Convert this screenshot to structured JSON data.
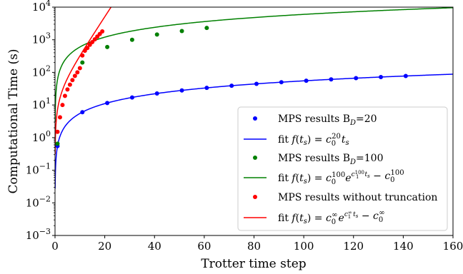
{
  "chart_data": {
    "type": "scatter",
    "title": "",
    "xlabel": "Trotter time step",
    "ylabel": "Computational Time (s)",
    "xlim": [
      0,
      160
    ],
    "ylim": [
      0.001,
      10000
    ],
    "yscale": "log",
    "grid": false,
    "legend_position": "lower-right",
    "x_ticks": [
      0,
      20,
      40,
      60,
      80,
      100,
      120,
      140,
      160
    ],
    "x_tick_labels": [
      "0",
      "20",
      "40",
      "60",
      "80",
      "100",
      "120",
      "140",
      "160"
    ],
    "y_ticks": [
      0.001,
      0.01,
      0.1,
      1,
      10,
      100,
      1000,
      10000
    ],
    "y_tick_labels": [
      {
        "base": "10",
        "exp": "−3"
      },
      {
        "base": "10",
        "exp": "−2"
      },
      {
        "base": "10",
        "exp": "−1"
      },
      {
        "base": "10",
        "exp": "0"
      },
      {
        "base": "10",
        "exp": "1"
      },
      {
        "base": "10",
        "exp": "2"
      },
      {
        "base": "10",
        "exp": "3"
      },
      {
        "base": "10",
        "exp": "4"
      }
    ],
    "series": [
      {
        "name": "MPS results B_D=20",
        "kind": "markers",
        "color": "#0000ff",
        "x": [
          1,
          11,
          21,
          31,
          41,
          51,
          61,
          71,
          81,
          91,
          101,
          111,
          121,
          131,
          141
        ],
        "y": [
          0.55,
          6.0,
          11.5,
          17.0,
          22.5,
          28.0,
          33.5,
          39.0,
          44.5,
          50.0,
          55.5,
          61.0,
          66.5,
          72.0,
          77.5
        ]
      },
      {
        "name": "fit f(t_s) = c_0^20 t_s",
        "kind": "line",
        "color": "#0000ff",
        "fit": {
          "form": "linear",
          "c0": 0.55
        }
      },
      {
        "name": "MPS results B_D=100",
        "kind": "markers",
        "color": "#008000",
        "x": [
          1,
          11,
          21,
          31,
          41,
          51,
          61
        ],
        "y": [
          0.65,
          200,
          600,
          1000,
          1450,
          1850,
          2300
        ]
      },
      {
        "name": "fit f(t_s) = c_0^100 e^(c_1^100 t_s) − c_0^100",
        "kind": "line",
        "color": "#008000",
        "fit": {
          "form": "power",
          "a": 60,
          "b": 1.0
        }
      },
      {
        "name": "MPS results without truncation",
        "kind": "markers",
        "color": "#ff0000",
        "x": [
          1,
          2,
          3,
          4,
          5,
          6,
          7,
          8,
          9,
          10,
          11,
          12,
          13,
          14,
          15,
          16,
          17,
          18,
          19
        ],
        "y": [
          1.5,
          4.2,
          10,
          19,
          30,
          42,
          58,
          78,
          100,
          135,
          330,
          460,
          560,
          700,
          850,
          1030,
          1250,
          1500,
          1800
        ]
      },
      {
        "name": "fit f(t_s) = c_0^∞ e^(c_1^∞ t_s) − c_0^∞",
        "kind": "line",
        "color": "#ff0000",
        "fit": {
          "form": "exponential",
          "c0": 23,
          "c1": 0.27
        }
      }
    ],
    "legend": {
      "items": [
        {
          "kind": "marker",
          "color": "#0000ff",
          "pre": "MPS results B",
          "sub": "D",
          "post": "=20"
        },
        {
          "kind": "line",
          "color": "#0000ff",
          "pre": "fit ",
          "math": "f(t_s) = c_0^20 t_s"
        },
        {
          "kind": "marker",
          "color": "#008000",
          "pre": "MPS results B",
          "sub": "D",
          "post": "=100"
        },
        {
          "kind": "line",
          "color": "#008000",
          "pre": "fit ",
          "math": "f(t_s) = c_0^100 e^(c_1^100 t_s) − c_0^100"
        },
        {
          "kind": "marker",
          "color": "#ff0000",
          "pre": "MPS results without truncation",
          "sub": "",
          "post": ""
        },
        {
          "kind": "line",
          "color": "#ff0000",
          "pre": "fit ",
          "math": "f(t_s) = c_0^∞ e^(c_1^∞ t_s) − c_0^∞"
        }
      ]
    }
  }
}
